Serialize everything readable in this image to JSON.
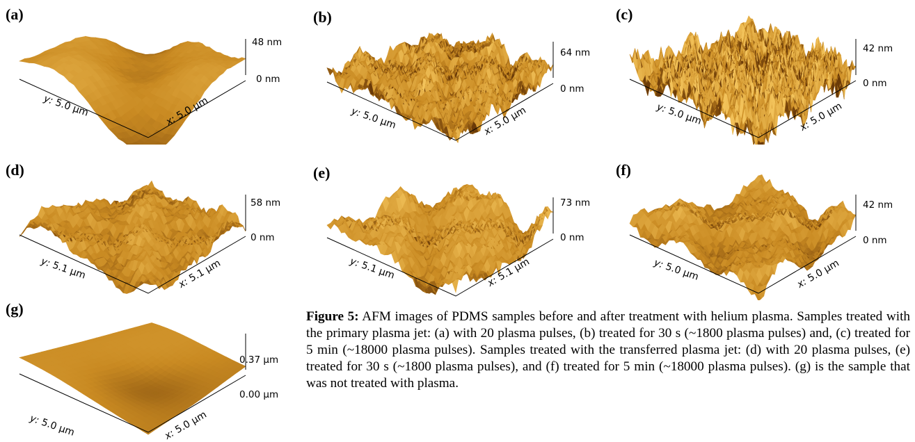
{
  "panels": [
    {
      "label": "(a)",
      "z_top": "48 nm",
      "z_bottom": "0 nm",
      "y_prefix": "y:",
      "y_value": "5.0 µm",
      "x_prefix": "x:",
      "x_value": "5.0 µm"
    },
    {
      "label": "(b)",
      "z_top": "64 nm",
      "z_bottom": "0 nm",
      "y_prefix": "y:",
      "y_value": "5.0 µm",
      "x_prefix": "x:",
      "x_value": "5.0 µm"
    },
    {
      "label": "(c)",
      "z_top": "42 nm",
      "z_bottom": "0 nm",
      "y_prefix": "y:",
      "y_value": "5.0 µm",
      "x_prefix": "x:",
      "x_value": "5.0 µm"
    },
    {
      "label": "(d)",
      "z_top": "58 nm",
      "z_bottom": "0 nm",
      "y_prefix": "y:",
      "y_value": "5.1 µm",
      "x_prefix": "x:",
      "x_value": "5.1 µm"
    },
    {
      "label": "(e)",
      "z_top": "73 nm",
      "z_bottom": "0 nm",
      "y_prefix": "y:",
      "y_value": "5.1 µm",
      "x_prefix": "x:",
      "x_value": "5.1 µm"
    },
    {
      "label": "(f)",
      "z_top": "42 nm",
      "z_bottom": "0 nm",
      "y_prefix": "y:",
      "y_value": "5.0 µm",
      "x_prefix": "x:",
      "x_value": "5.0 µm"
    },
    {
      "label": "(g)",
      "z_top": "0.37 µm",
      "z_bottom": "0.00 µm",
      "y_prefix": "y:",
      "y_value": "5.0 µm",
      "x_prefix": "x:",
      "x_value": "5.0 µm"
    }
  ],
  "caption": {
    "heading": "Figure 5:",
    "body": " AFM images of PDMS samples before and after treatment with helium plasma. Samples treated with the primary plasma jet: (a) with 20 plasma pulses, (b) treated for 30 s (~1800 plasma pulses) and, (c) treated for 5 min (~18000 plasma pulses). Samples treated with the transferred plasma jet: (d) with 20 plasma pulses, (e) treated for 30 s (~1800 plasma pulses), and (f) treated for 5 min (~18000 plasma pulses). (g) is the sample that was not treated with plasma."
  },
  "colors": {
    "surface_light": "#f2c25a",
    "surface_mid": "#c98a22",
    "surface_dark": "#6a3a08",
    "axis": "#000000"
  }
}
